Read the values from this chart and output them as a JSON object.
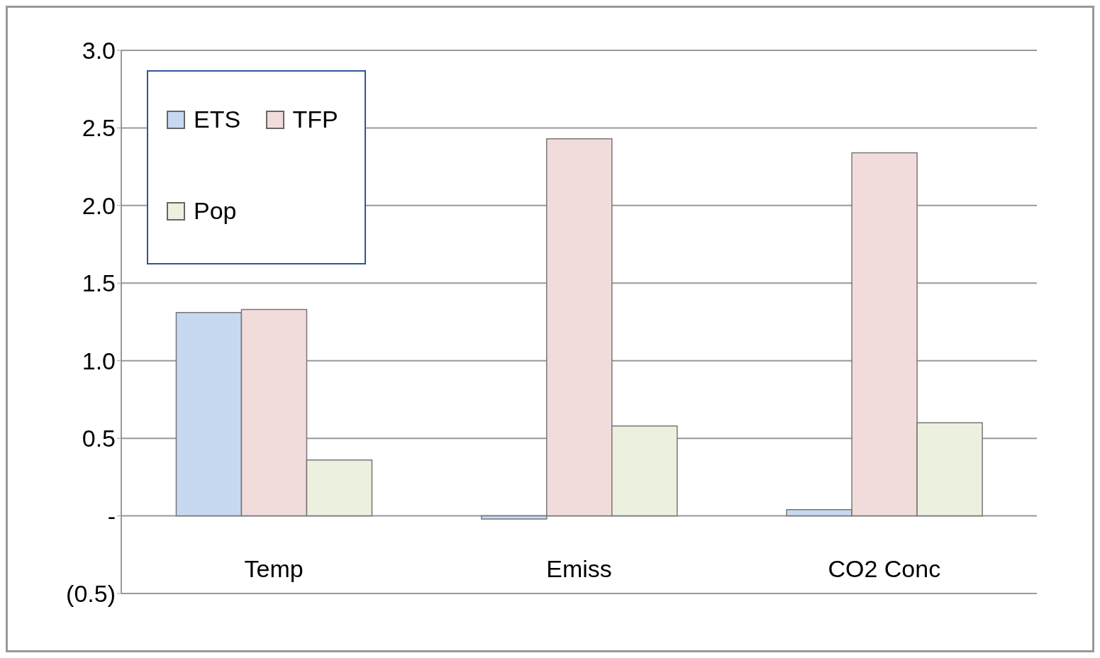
{
  "chart_data": {
    "type": "bar",
    "categories": [
      "Temp",
      "Emiss",
      "CO2 Conc"
    ],
    "series": [
      {
        "name": "ETS",
        "color": "#c6d9f1",
        "values": [
          1.31,
          -0.02,
          0.04
        ]
      },
      {
        "name": "TFP",
        "color": "#f2dcdb",
        "values": [
          1.33,
          2.43,
          2.34
        ]
      },
      {
        "name": "Pop",
        "color": "#ebf1de",
        "values": [
          0.36,
          0.58,
          0.6
        ]
      }
    ],
    "ylim": [
      -0.5,
      3.0
    ],
    "yticks": [
      {
        "value": -0.5,
        "label": "(0.5)"
      },
      {
        "value": 0,
        "label": "-"
      },
      {
        "value": 0.5,
        "label": "0.5"
      },
      {
        "value": 1.0,
        "label": "1.0"
      },
      {
        "value": 1.5,
        "label": "1.5"
      },
      {
        "value": 2.0,
        "label": "2.0"
      },
      {
        "value": 2.5,
        "label": "2.5"
      },
      {
        "value": 3.0,
        "label": "3.0"
      }
    ],
    "grid": "y",
    "legend": "top left"
  }
}
